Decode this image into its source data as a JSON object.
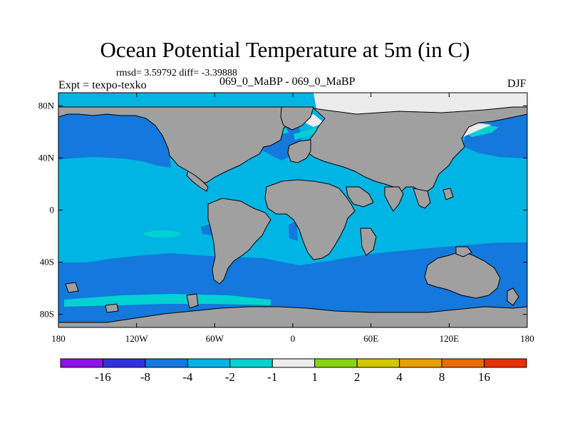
{
  "title": "Ocean Potential Temperature at 5m (in C)",
  "stats_text": "rmsd= 3.59792 diff= -3.39888",
  "expt_label": "Expt = texpo-texko",
  "case_label": "069_0_MaBP - 069_0_MaBP",
  "season": "DJF",
  "map": {
    "projection": "cylindrical-equidistant",
    "lon_range": [
      -180,
      180
    ],
    "lat_range": [
      -90,
      90
    ],
    "land_color": "#a0a0a0",
    "ocean_base_color": "#00b4e4",
    "lat_ticks": [
      {
        "value": 80,
        "label": "80N"
      },
      {
        "value": 40,
        "label": "40N"
      },
      {
        "value": 0,
        "label": "0"
      },
      {
        "value": -40,
        "label": "40S"
      },
      {
        "value": -80,
        "label": "80S"
      }
    ],
    "lon_ticks": [
      {
        "value": -180,
        "label": "180"
      },
      {
        "value": -120,
        "label": "120W"
      },
      {
        "value": -60,
        "label": "60W"
      },
      {
        "value": 0,
        "label": "0"
      },
      {
        "value": 60,
        "label": "60E"
      },
      {
        "value": 120,
        "label": "120E"
      },
      {
        "value": 180,
        "label": "180"
      }
    ]
  },
  "colorbar": {
    "colors": [
      "#8c14e6",
      "#3232dc",
      "#1478dc",
      "#00b4e4",
      "#00d2d2",
      "#ececec",
      "#88d414",
      "#d2c800",
      "#e6a000",
      "#e66e00",
      "#e63200"
    ],
    "labels": [
      "-16",
      "-8",
      "-4",
      "-2",
      "-1",
      "1",
      "2",
      "4",
      "8",
      "16"
    ]
  }
}
